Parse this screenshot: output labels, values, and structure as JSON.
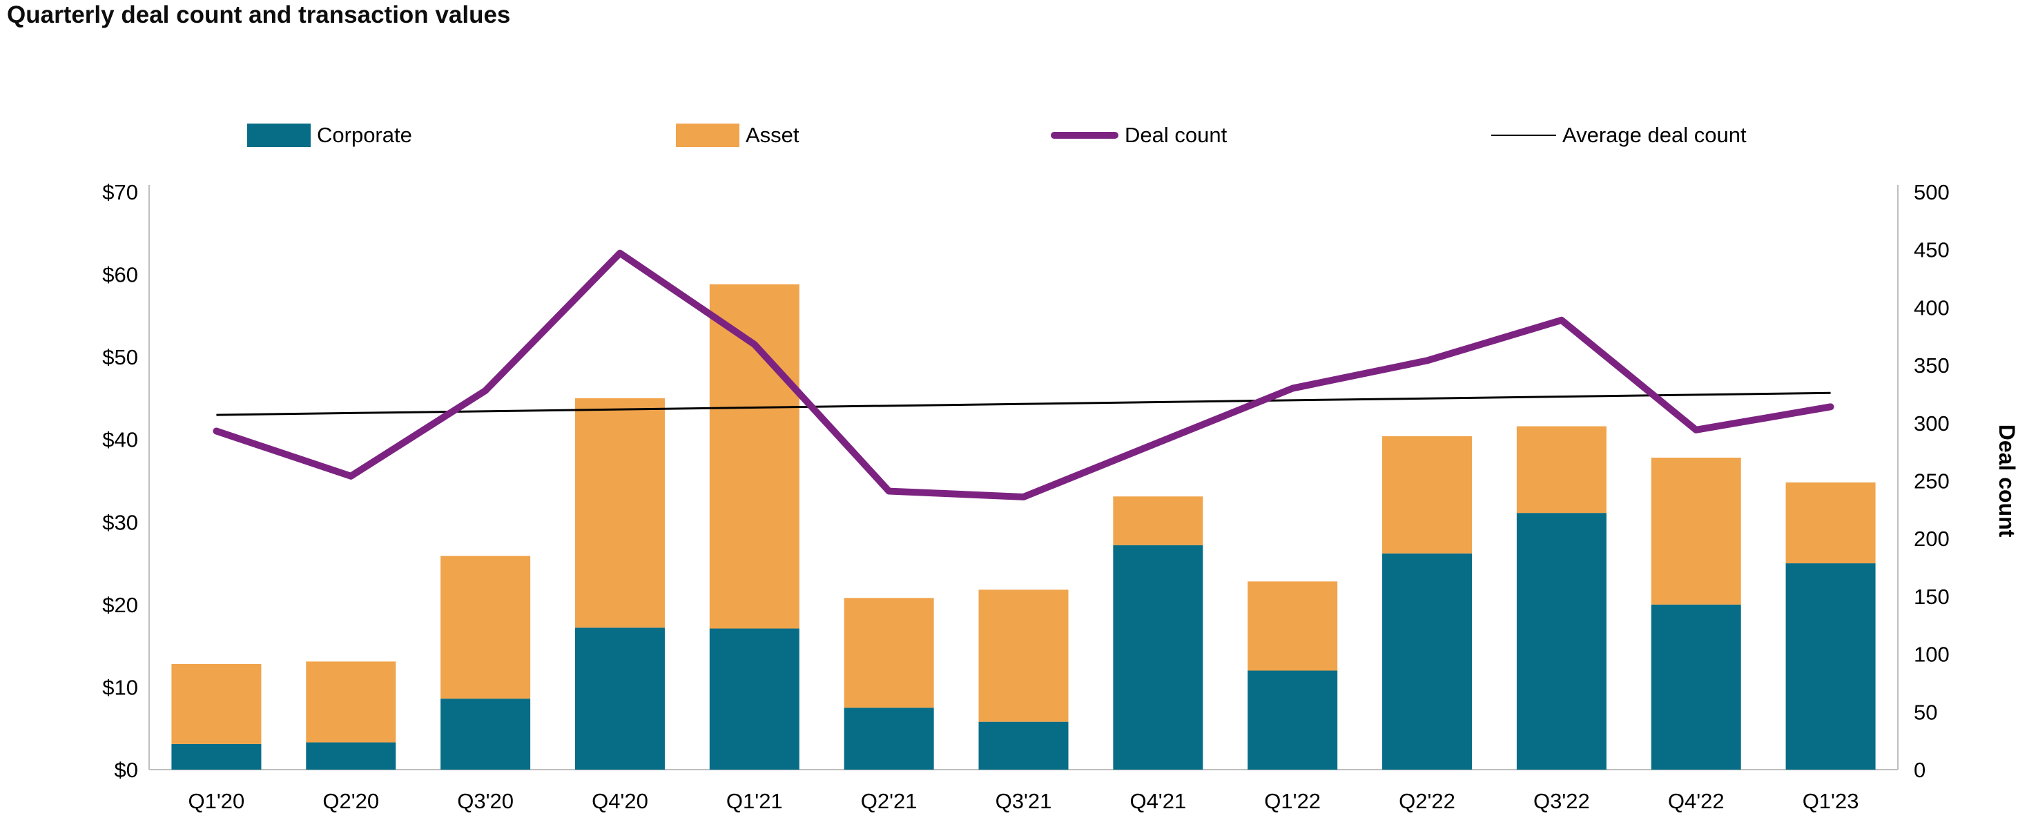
{
  "title": "Quarterly deal count and transaction values",
  "legend": [
    {
      "label": "Corporate",
      "swatch": "box",
      "color": "#076D87"
    },
    {
      "label": "Asset",
      "swatch": "box",
      "color": "#F0A44C"
    },
    {
      "label": "Deal count",
      "swatch": "thick-line",
      "color": "#7C2382"
    },
    {
      "label": "Average deal count",
      "swatch": "thin-line",
      "color": "#000000"
    }
  ],
  "colors": {
    "corporate": "#076D87",
    "asset": "#F0A44C",
    "deal_count_line": "#7C2382",
    "average_line": "#000000",
    "axis_line": "#BFBFBF",
    "tick_text": "#000000"
  },
  "chart_data": {
    "type": "bar",
    "subtype": "stacked-bars-with-lines-combo",
    "categories": [
      "Q1'20",
      "Q2'20",
      "Q3'20",
      "Q4'20",
      "Q1'21",
      "Q2'21",
      "Q3'21",
      "Q4'21",
      "Q1'22",
      "Q2'22",
      "Q3'22",
      "Q4'22",
      "Q1'23"
    ],
    "series": [
      {
        "name": "Corporate",
        "render": "bar-stack",
        "axis": "left",
        "color": "#076D87",
        "values": [
          3.1,
          3.3,
          8.6,
          17.2,
          17.1,
          7.5,
          5.8,
          27.2,
          12.0,
          26.2,
          31.1,
          20.0,
          25.0
        ]
      },
      {
        "name": "Asset",
        "render": "bar-stack",
        "axis": "left",
        "color": "#F0A44C",
        "values": [
          9.7,
          9.8,
          17.3,
          27.8,
          41.7,
          13.3,
          16.0,
          5.9,
          10.8,
          14.2,
          10.5,
          17.8,
          9.8
        ]
      },
      {
        "name": "Deal count",
        "render": "line",
        "axis": "right",
        "color": "#7C2382",
        "values": [
          293,
          254,
          328,
          447,
          368,
          241,
          236,
          283,
          330,
          354,
          389,
          294,
          314
        ]
      },
      {
        "name": "Average deal count",
        "render": "trend-line",
        "axis": "right",
        "color": "#000000",
        "start": 307,
        "end": 326
      }
    ],
    "left_axis": {
      "ticks": [
        "$70",
        "$60",
        "$50",
        "$40",
        "$30",
        "$20",
        "$10",
        "$0"
      ],
      "min": 0,
      "max": 70
    },
    "right_axis": {
      "label": "Deal count",
      "ticks": [
        "500",
        "450",
        "400",
        "350",
        "300",
        "250",
        "200",
        "150",
        "100",
        "50",
        "0"
      ],
      "min": 0,
      "max": 500
    },
    "title": "Quarterly deal count and transaction values",
    "xlabel": "",
    "ylabel_left": "",
    "ylabel_right": "Deal count",
    "grid": false,
    "legend_position": "top"
  }
}
